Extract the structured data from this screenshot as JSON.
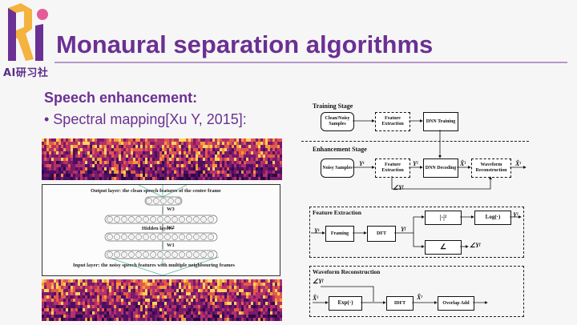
{
  "logo": {
    "sub_label": "AI研习社",
    "letters": "Ri"
  },
  "slide": {
    "title": "Monaural separation algorithms",
    "heading": "Speech enhancement:",
    "bullet": "• Spectral mapping[Xu Y, 2015]:"
  },
  "dnn_figure": {
    "output_label": "Output layer: the clean speech features of the center frame",
    "hidden_label": "Hidden layers",
    "input_label": "Input layer: the noisy speech features with multiple neighbouring frames",
    "w3": "W3",
    "w2": "W2",
    "w1": "W1"
  },
  "diagram": {
    "training_stage": "Training Stage",
    "enhancement_stage": "Enhancement Stage",
    "feature_extraction_title": "Feature Extraction",
    "waveform_reconstruction_title": "Waveform Reconstruction",
    "boxes": {
      "clean_noisy": "Clean/Noisy Samples",
      "feature_extraction_1": "Feature Extraction",
      "dnn_training": "DNN Training",
      "noisy_samples": "Noisy Samples",
      "feature_extraction_2": "Feature Extraction",
      "dnn_decoding": "DNN Decoding",
      "waveform_reconstruction": "Waveform Reconstruction",
      "framing": "Framing",
      "dft": "DFT",
      "abs_sq": "|·|²",
      "log": "Log(·)",
      "angle": "∠",
      "exp": "Exp(·)",
      "idft": "IDFT",
      "overlap_add": "Overlap Add"
    },
    "symbols": {
      "yt": "Yᵗ",
      "yl": "Yˡ",
      "xl_hat": "X̂ˡ",
      "xt_hat": "X̂ᵗ",
      "angle_yf": "∠Yᶠ",
      "yf": "Yᶠ"
    }
  }
}
